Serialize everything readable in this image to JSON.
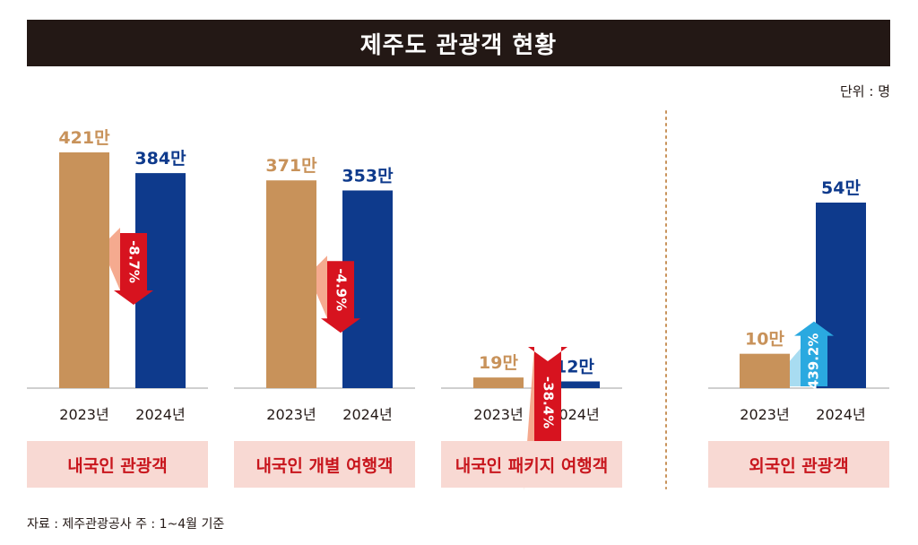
{
  "title": "제주도 관광객 현황",
  "unit": "단위 : 명",
  "source_note": "자료 : 제주관광공사  주 : 1~4월 기준",
  "colors": {
    "y2023": "#c8925a",
    "y2024": "#0e3a8c",
    "down": "#d7131f",
    "down_band": "#f4a183",
    "up": "#2aa9e0",
    "up_band": "#9ed8f0",
    "value_2023": "#c8925a",
    "value_2024": "#0e3a8c",
    "axis": "#bfbfbf",
    "divider": "#c8925a"
  },
  "chart_data": [
    {
      "type": "bar",
      "title": "내국인 관광객",
      "categories": [
        "2023년",
        "2024년"
      ],
      "values": [
        421,
        384
      ],
      "value_labels": [
        "421만",
        "384만"
      ],
      "change": "-8.7%",
      "direction": "down"
    },
    {
      "type": "bar",
      "title": "내국인 개별 여행객",
      "categories": [
        "2023년",
        "2024년"
      ],
      "values": [
        371,
        353
      ],
      "value_labels": [
        "371만",
        "353만"
      ],
      "change": "-4.9%",
      "direction": "down"
    },
    {
      "type": "bar",
      "title": "내국인 패키지 여행객",
      "categories": [
        "2023년",
        "2024년"
      ],
      "values": [
        19,
        12
      ],
      "value_labels": [
        "19만",
        "12만"
      ],
      "change": "-38.4%",
      "direction": "down"
    },
    {
      "type": "bar",
      "title": "외국인 관광객",
      "categories": [
        "2023년",
        "2024년"
      ],
      "values": [
        10,
        54
      ],
      "value_labels": [
        "10만",
        "54만"
      ],
      "change": "439.2%",
      "direction": "up"
    }
  ]
}
